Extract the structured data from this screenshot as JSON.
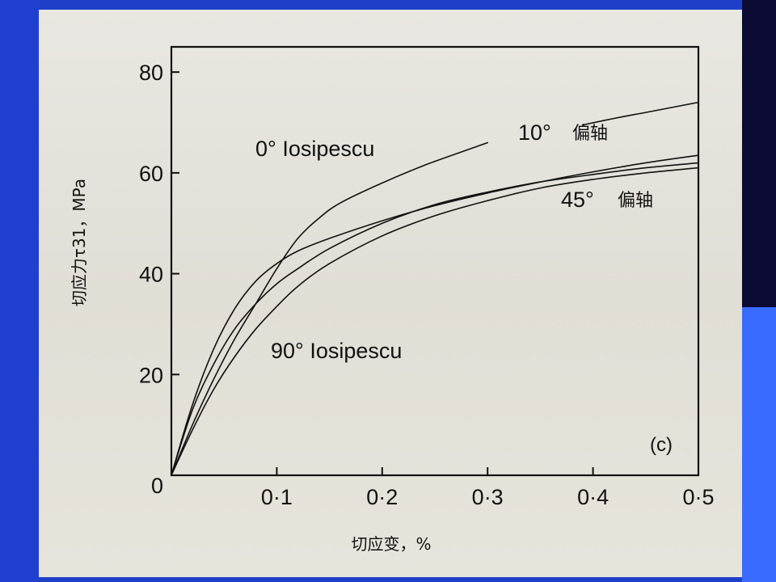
{
  "colors": {
    "paper": "#e5e2db",
    "ink": "#111111",
    "left_band": "#1f3fd0",
    "right_band": "#0a0a33",
    "accent": "#3a6bff"
  },
  "chart_data": {
    "type": "line",
    "title": "",
    "panel_label": "(c)",
    "xlabel": "切应变，%",
    "ylabel": "切应力τ31，MPa",
    "xlim": [
      0,
      0.5
    ],
    "ylim": [
      0,
      85
    ],
    "x_ticks": [
      0.1,
      0.2,
      0.3,
      0.4,
      0.5
    ],
    "x_tick_labels": [
      "0·1",
      "0·2",
      "0·3",
      "0·4",
      "0·5"
    ],
    "y_ticks": [
      0,
      20,
      40,
      60,
      80
    ],
    "y_tick_labels": [
      "0",
      "20",
      "40",
      "60",
      "80"
    ],
    "grid": false,
    "curve_labels": [
      {
        "text": "0° Iosipescu"
      },
      {
        "text": "10°",
        "suffix": "偏轴"
      },
      {
        "text": "45°",
        "suffix": "偏轴"
      },
      {
        "text": "90° Iosipescu"
      }
    ],
    "series": [
      {
        "id": "zero_iosipescu",
        "x": [
          0,
          0.02,
          0.04,
          0.06,
          0.08,
          0.1,
          0.12,
          0.14,
          0.16,
          0.2,
          0.24,
          0.28,
          0.3
        ],
        "y": [
          0,
          10,
          19,
          27,
          34,
          41,
          47,
          51,
          54,
          58,
          61.5,
          64.5,
          66
        ]
      },
      {
        "id": "ten_offaxis",
        "x": [
          0.39,
          0.42,
          0.45,
          0.48,
          0.5
        ],
        "y": [
          69.5,
          70.8,
          72,
          73.2,
          74
        ]
      },
      {
        "id": "forty_five_offaxis",
        "x": [
          0,
          0.02,
          0.04,
          0.06,
          0.08,
          0.1,
          0.12,
          0.15,
          0.2,
          0.25,
          0.3,
          0.35,
          0.4,
          0.45,
          0.5
        ],
        "y": [
          0,
          14,
          25,
          33,
          38.5,
          42,
          44.5,
          47,
          50.5,
          53.5,
          56,
          58.2,
          60.2,
          62,
          63.5
        ]
      },
      {
        "id": "forty_five_offaxis_b",
        "x": [
          0,
          0.02,
          0.04,
          0.06,
          0.08,
          0.1,
          0.12,
          0.15,
          0.2,
          0.25,
          0.3,
          0.35,
          0.4,
          0.45,
          0.5
        ],
        "y": [
          0,
          13,
          22,
          29,
          34,
          38,
          41,
          45,
          50,
          53.7,
          56.2,
          58.2,
          59.7,
          61,
          62
        ]
      },
      {
        "id": "ninety_iosipescu",
        "x": [
          0,
          0.02,
          0.04,
          0.06,
          0.08,
          0.1,
          0.12,
          0.15,
          0.2,
          0.25,
          0.3,
          0.35,
          0.4,
          0.45,
          0.5
        ],
        "y": [
          0,
          9,
          17,
          23.5,
          29,
          33.5,
          37.5,
          42,
          47.5,
          51.5,
          54.5,
          57,
          58.7,
          60,
          61
        ]
      }
    ]
  }
}
